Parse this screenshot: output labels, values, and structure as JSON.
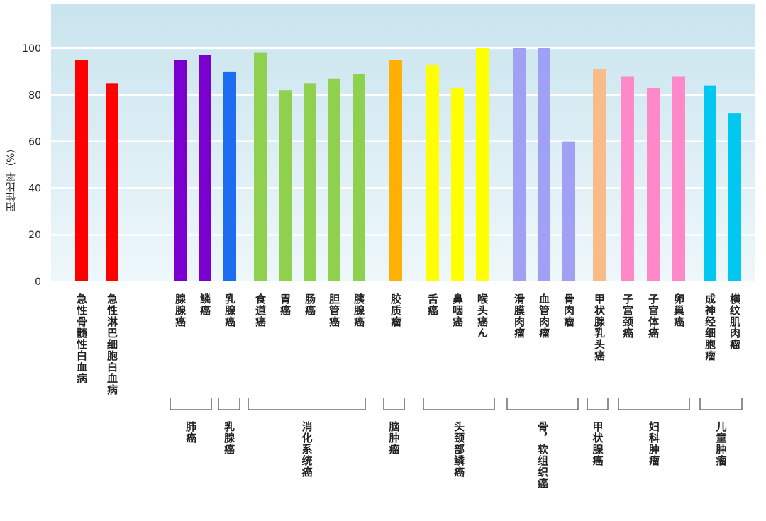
{
  "chart_data": {
    "type": "bar",
    "ylabel": "阳性比率（%）",
    "ylim": [
      0,
      120
    ],
    "yticks": [
      0,
      20,
      40,
      60,
      80,
      100
    ],
    "categories": [
      {
        "label": "急性骨髓性白血病",
        "value": 95,
        "color": "#ff0000"
      },
      {
        "label": "急性淋巴细胞白血病",
        "value": 85,
        "color": "#ff0000"
      },
      {
        "label": "腺腺癌",
        "value": 95,
        "color": "#7a00d0"
      },
      {
        "label": "鳞癌",
        "value": 97,
        "color": "#7a00d0"
      },
      {
        "label": "乳腺癌",
        "value": 90,
        "color": "#1e6cf0"
      },
      {
        "label": "食道癌",
        "value": 98,
        "color": "#8fd14f"
      },
      {
        "label": "胃癌",
        "value": 82,
        "color": "#8fd14f"
      },
      {
        "label": "肠癌",
        "value": 85,
        "color": "#8fd14f"
      },
      {
        "label": "胆管癌",
        "value": 87,
        "color": "#8fd14f"
      },
      {
        "label": "胰腺癌",
        "value": 89,
        "color": "#8fd14f"
      },
      {
        "label": "胶质瘤",
        "value": 95,
        "color": "#ffb000"
      },
      {
        "label": "舌癌",
        "value": 93,
        "color": "#ffff00"
      },
      {
        "label": "鼻咽癌",
        "value": 83,
        "color": "#ffff00"
      },
      {
        "label": "喉头癌ん",
        "value": 100,
        "color": "#ffff00"
      },
      {
        "label": "滑膜肉瘤",
        "value": 100,
        "color": "#a0a0f5"
      },
      {
        "label": "血管肉瘤",
        "value": 100,
        "color": "#a0a0f5"
      },
      {
        "label": "骨肉瘤",
        "value": 60,
        "color": "#a0a0f5"
      },
      {
        "label": "甲状腺乳头癌",
        "value": 91,
        "color": "#f9bb88"
      },
      {
        "label": "子宫颈癌",
        "value": 88,
        "color": "#ff88c8"
      },
      {
        "label": "子宫体癌",
        "value": 83,
        "color": "#ff88c8"
      },
      {
        "label": "卵巢癌",
        "value": 88,
        "color": "#ff88c8"
      },
      {
        "label": "成神经细胞瘤",
        "value": 84,
        "color": "#00c8f0"
      },
      {
        "label": "横纹肌肉瘤",
        "value": 72,
        "color": "#00c8f0"
      }
    ],
    "groups": [
      {
        "label": "肺癌"
      },
      {
        "label": "乳腺癌"
      },
      {
        "label": "消化系统癌"
      },
      {
        "label": "脑肿瘤"
      },
      {
        "label": "头颈部鳞癌"
      },
      {
        "label": "骨，软组织癌"
      },
      {
        "label": "甲状腺癌"
      },
      {
        "label": "妇科肿瘤"
      },
      {
        "label": "儿童肿瘤"
      }
    ]
  }
}
